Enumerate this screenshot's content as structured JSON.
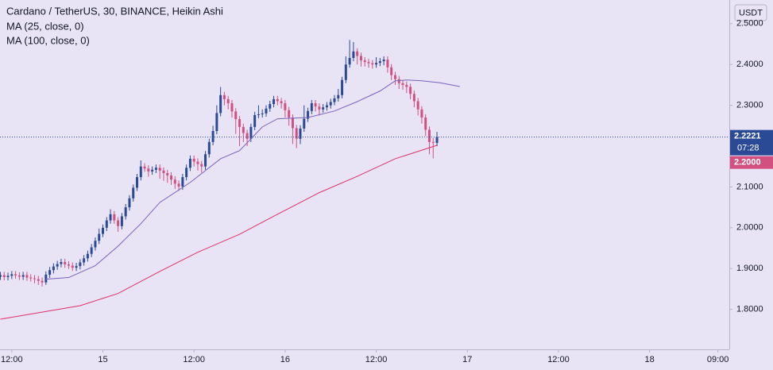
{
  "chart_data": {
    "type": "candlestick",
    "title": "Cardano / TetherUS, 30, BINANCE, Heikin Ashi",
    "currency": "USDT",
    "countdown": "07:28",
    "price_line": {
      "value": 2.2,
      "label": "2.2000"
    },
    "up_color": "#2b4a96",
    "down_color": "#d2507f",
    "x": [
      -3,
      -2,
      -1,
      0,
      1,
      2,
      3,
      4,
      5,
      6,
      7,
      8,
      9,
      10,
      11,
      12,
      13,
      14,
      15,
      16,
      17,
      18,
      19,
      20,
      21,
      22,
      23,
      24,
      25,
      26,
      27,
      28,
      29,
      30,
      31,
      32,
      33,
      34,
      35,
      36,
      37,
      38,
      39,
      40,
      41,
      42,
      43,
      44,
      45,
      46,
      47,
      48,
      49,
      50,
      51,
      52,
      53,
      54,
      55,
      56,
      57,
      58,
      59,
      60,
      61,
      62,
      63,
      64,
      65,
      66,
      67,
      68,
      69,
      70,
      71,
      72,
      73,
      74,
      75,
      76,
      77,
      78,
      79,
      80,
      81,
      82,
      83,
      84,
      85,
      86,
      87,
      88,
      89,
      90,
      91,
      92,
      93,
      94,
      95,
      96,
      97,
      98,
      99,
      100,
      101,
      102,
      103,
      104,
      105,
      106,
      107,
      108,
      109,
      110,
      111,
      112
    ],
    "open": [
      1.88,
      1.884,
      1.879,
      1.882,
      1.886,
      1.883,
      1.88,
      1.884,
      1.878,
      1.876,
      1.874,
      1.87,
      1.866,
      1.885,
      1.896,
      1.905,
      1.911,
      1.916,
      1.91,
      1.907,
      1.902,
      1.906,
      1.915,
      1.925,
      1.936,
      1.952,
      1.968,
      1.985,
      2.0,
      2.018,
      2.033,
      2.018,
      2.004,
      2.028,
      2.05,
      2.072,
      2.098,
      2.124,
      2.15,
      2.145,
      2.138,
      2.142,
      2.147,
      2.14,
      2.134,
      2.128,
      2.118,
      2.108,
      2.101,
      2.124,
      2.147,
      2.169,
      2.162,
      2.156,
      2.15,
      2.18,
      2.21,
      2.237,
      2.281,
      2.325,
      2.315,
      2.305,
      2.285,
      2.266,
      2.247,
      2.232,
      2.218,
      2.247,
      2.276,
      2.278,
      2.28,
      2.292,
      2.303,
      2.315,
      2.31,
      2.305,
      2.288,
      2.27,
      2.244,
      2.218,
      2.243,
      2.267,
      2.286,
      2.305,
      2.297,
      2.29,
      2.295,
      2.3,
      2.308,
      2.317,
      2.325,
      2.362,
      2.4,
      2.416,
      2.432,
      2.421,
      2.41,
      2.406,
      2.403,
      2.4,
      2.404,
      2.408,
      2.412,
      2.393,
      2.374,
      2.364,
      2.354,
      2.35,
      2.345,
      2.328,
      2.31,
      2.29,
      2.27,
      2.24,
      2.21,
      2.208
    ],
    "high": [
      1.892,
      1.892,
      1.89,
      1.894,
      1.894,
      1.891,
      1.892,
      1.892,
      1.886,
      1.884,
      1.882,
      1.878,
      1.893,
      1.904,
      1.913,
      1.919,
      1.924,
      1.924,
      1.918,
      1.915,
      1.914,
      1.923,
      1.933,
      1.944,
      1.96,
      1.976,
      1.998,
      2.008,
      2.026,
      2.045,
      2.041,
      2.026,
      2.036,
      2.058,
      2.08,
      2.106,
      2.132,
      2.165,
      2.158,
      2.153,
      2.15,
      2.155,
      2.155,
      2.148,
      2.142,
      2.136,
      2.126,
      2.116,
      2.132,
      2.155,
      2.177,
      2.177,
      2.17,
      2.164,
      2.188,
      2.218,
      2.25,
      2.3,
      2.345,
      2.333,
      2.323,
      2.313,
      2.293,
      2.274,
      2.255,
      2.24,
      2.255,
      2.284,
      2.3,
      2.29,
      2.3,
      2.311,
      2.323,
      2.323,
      2.318,
      2.313,
      2.296,
      2.278,
      2.252,
      2.251,
      2.3,
      2.294,
      2.313,
      2.313,
      2.305,
      2.303,
      2.308,
      2.316,
      2.325,
      2.34,
      2.37,
      2.42,
      2.46,
      2.455,
      2.44,
      2.429,
      2.418,
      2.414,
      2.411,
      2.418,
      2.416,
      2.42,
      2.42,
      2.401,
      2.382,
      2.372,
      2.362,
      2.358,
      2.353,
      2.336,
      2.318,
      2.298,
      2.278,
      2.248,
      2.22,
      2.235
    ],
    "low": [
      1.872,
      1.871,
      1.871,
      1.874,
      1.875,
      1.872,
      1.872,
      1.87,
      1.868,
      1.864,
      1.86,
      1.856,
      1.86,
      1.877,
      1.888,
      1.897,
      1.903,
      1.902,
      1.899,
      1.894,
      1.894,
      1.898,
      1.907,
      1.917,
      1.928,
      1.944,
      1.96,
      1.977,
      1.992,
      2.01,
      2.01,
      1.99,
      1.996,
      2.02,
      2.042,
      2.064,
      2.09,
      2.116,
      2.137,
      2.125,
      2.13,
      2.134,
      2.12,
      2.115,
      2.11,
      2.105,
      2.095,
      2.09,
      2.093,
      2.116,
      2.139,
      2.15,
      2.14,
      2.135,
      2.142,
      2.172,
      2.202,
      2.229,
      2.273,
      2.3,
      2.29,
      2.27,
      2.23,
      2.2,
      2.21,
      2.2,
      2.21,
      2.239,
      2.268,
      2.27,
      2.272,
      2.284,
      2.295,
      2.3,
      2.292,
      2.27,
      2.25,
      2.205,
      2.195,
      2.205,
      2.235,
      2.259,
      2.278,
      2.285,
      2.275,
      2.282,
      2.287,
      2.292,
      2.3,
      2.309,
      2.317,
      2.354,
      2.392,
      2.408,
      2.4,
      2.395,
      2.395,
      2.392,
      2.39,
      2.392,
      2.396,
      2.398,
      2.38,
      2.362,
      2.35,
      2.34,
      2.338,
      2.33,
      2.315,
      2.295,
      2.275,
      2.255,
      2.225,
      2.18,
      2.17,
      2.2
    ],
    "close": [
      1.884,
      1.879,
      1.882,
      1.886,
      1.883,
      1.88,
      1.884,
      1.878,
      1.876,
      1.874,
      1.87,
      1.866,
      1.885,
      1.896,
      1.905,
      1.911,
      1.916,
      1.91,
      1.907,
      1.902,
      1.906,
      1.915,
      1.925,
      1.936,
      1.952,
      1.968,
      1.985,
      2.0,
      2.018,
      2.033,
      2.018,
      2.004,
      2.028,
      2.05,
      2.072,
      2.098,
      2.124,
      2.15,
      2.145,
      2.138,
      2.142,
      2.147,
      2.14,
      2.134,
      2.128,
      2.118,
      2.108,
      2.101,
      2.124,
      2.147,
      2.169,
      2.162,
      2.156,
      2.15,
      2.18,
      2.21,
      2.237,
      2.281,
      2.325,
      2.315,
      2.305,
      2.285,
      2.266,
      2.247,
      2.232,
      2.218,
      2.247,
      2.276,
      2.278,
      2.28,
      2.292,
      2.303,
      2.315,
      2.31,
      2.305,
      2.288,
      2.27,
      2.244,
      2.218,
      2.243,
      2.267,
      2.286,
      2.305,
      2.297,
      2.29,
      2.295,
      2.3,
      2.308,
      2.317,
      2.325,
      2.362,
      2.4,
      2.416,
      2.432,
      2.421,
      2.41,
      2.406,
      2.403,
      2.4,
      2.404,
      2.408,
      2.412,
      2.393,
      2.374,
      2.364,
      2.354,
      2.35,
      2.345,
      2.328,
      2.31,
      2.29,
      2.27,
      2.24,
      2.21,
      2.208,
      2.2221
    ],
    "series": [
      {
        "name": "MA (25, close, 0)",
        "color": "#7a62b8",
        "x": [
          9,
          15,
          22,
          28,
          34,
          39,
          47,
          55,
          60,
          66,
          70,
          78,
          85,
          91,
          97,
          101,
          104,
          108,
          113,
          118
        ],
        "values": [
          1.874,
          1.878,
          1.907,
          1.955,
          2.01,
          2.062,
          2.111,
          2.169,
          2.189,
          2.247,
          2.267,
          2.27,
          2.286,
          2.309,
          2.335,
          2.36,
          2.362,
          2.36,
          2.355,
          2.346
        ]
      },
      {
        "name": "MA (100, close, 0)",
        "color": "#e0306a",
        "x": [
          -3,
          18,
          28,
          39,
          49,
          60,
          70,
          81,
          91,
          101,
          112
        ],
        "values": [
          1.776,
          1.809,
          1.839,
          1.893,
          1.94,
          1.984,
          2.033,
          2.086,
          2.126,
          2.169,
          2.202
        ]
      }
    ],
    "xlim": [
      -3.1,
      189
    ],
    "ylim": [
      1.702,
      2.558
    ],
    "xticks": [
      {
        "value": 0,
        "label": "12:00"
      },
      {
        "value": 24,
        "label": "15"
      },
      {
        "value": 48,
        "label": "12:00"
      },
      {
        "value": 72,
        "label": "16"
      },
      {
        "value": 96,
        "label": "12:00"
      },
      {
        "value": 120,
        "label": "17"
      },
      {
        "value": 144,
        "label": "12:00"
      },
      {
        "value": 168,
        "label": "18"
      },
      {
        "value": 186,
        "label": "09:00"
      }
    ],
    "yticks": [
      {
        "value": 1.8,
        "label": "1.8000"
      },
      {
        "value": 1.9,
        "label": "1.9000"
      },
      {
        "value": 2.0,
        "label": "2.0000"
      },
      {
        "value": 2.1,
        "label": "2.1000"
      },
      {
        "value": 2.3,
        "label": "2.3000"
      },
      {
        "value": 2.4,
        "label": "2.4000"
      },
      {
        "value": 2.5,
        "label": "2.5000"
      }
    ]
  }
}
